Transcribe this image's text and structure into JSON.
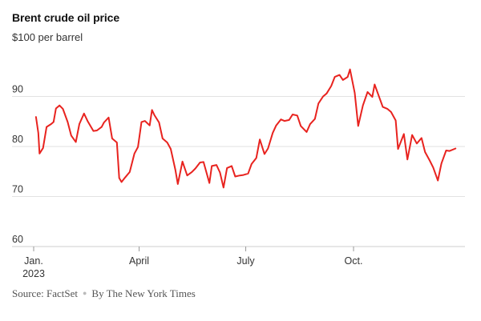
{
  "chart_data": {
    "type": "line",
    "title": "Brent crude oil price",
    "subtitle": "$100 per barrel",
    "ylim": [
      60,
      100
    ],
    "yticks": [
      60,
      70,
      80,
      90
    ],
    "xlim": [
      "2023-01-01",
      "2023-12-31"
    ],
    "xticks": [
      {
        "date": "2023-01-01",
        "label": "Jan.",
        "sublabel": "2023"
      },
      {
        "date": "2023-04-01",
        "label": "April",
        "sublabel": ""
      },
      {
        "date": "2023-07-01",
        "label": "July",
        "sublabel": ""
      },
      {
        "date": "2023-10-01",
        "label": "Oct.",
        "sublabel": ""
      }
    ],
    "grid": true,
    "legend": "none",
    "series": [
      {
        "color": "#e8231f",
        "points": [
          [
            "2023-01-03",
            85.9
          ],
          [
            "2023-01-05",
            82.7
          ],
          [
            "2023-01-06",
            78.6
          ],
          [
            "2023-01-09",
            79.7
          ],
          [
            "2023-01-12",
            83.9
          ],
          [
            "2023-01-16",
            84.5
          ],
          [
            "2023-01-18",
            84.9
          ],
          [
            "2023-01-20",
            87.6
          ],
          [
            "2023-01-23",
            88.2
          ],
          [
            "2023-01-26",
            87.5
          ],
          [
            "2023-01-30",
            84.9
          ],
          [
            "2023-02-02",
            82.2
          ],
          [
            "2023-02-06",
            80.9
          ],
          [
            "2023-02-09",
            84.5
          ],
          [
            "2023-02-13",
            86.6
          ],
          [
            "2023-02-16",
            85.1
          ],
          [
            "2023-02-21",
            83.1
          ],
          [
            "2023-02-24",
            83.2
          ],
          [
            "2023-02-28",
            83.9
          ],
          [
            "2023-03-02",
            84.8
          ],
          [
            "2023-03-06",
            85.8
          ],
          [
            "2023-03-09",
            81.6
          ],
          [
            "2023-03-13",
            80.8
          ],
          [
            "2023-03-15",
            73.7
          ],
          [
            "2023-03-17",
            72.9
          ],
          [
            "2023-03-20",
            73.8
          ],
          [
            "2023-03-24",
            74.9
          ],
          [
            "2023-03-28",
            78.6
          ],
          [
            "2023-03-31",
            79.9
          ],
          [
            "2023-04-03",
            84.9
          ],
          [
            "2023-04-06",
            85.1
          ],
          [
            "2023-04-10",
            84.2
          ],
          [
            "2023-04-12",
            87.3
          ],
          [
            "2023-04-14",
            86.3
          ],
          [
            "2023-04-18",
            84.8
          ],
          [
            "2023-04-21",
            81.6
          ],
          [
            "2023-04-25",
            80.8
          ],
          [
            "2023-04-28",
            79.5
          ],
          [
            "2023-05-02",
            75.3
          ],
          [
            "2023-05-04",
            72.5
          ],
          [
            "2023-05-08",
            77.0
          ],
          [
            "2023-05-12",
            74.2
          ],
          [
            "2023-05-16",
            74.9
          ],
          [
            "2023-05-19",
            75.6
          ],
          [
            "2023-05-23",
            76.8
          ],
          [
            "2023-05-26",
            76.9
          ],
          [
            "2023-05-31",
            72.7
          ],
          [
            "2023-06-02",
            76.1
          ],
          [
            "2023-06-06",
            76.3
          ],
          [
            "2023-06-09",
            74.8
          ],
          [
            "2023-06-12",
            71.8
          ],
          [
            "2023-06-15",
            75.7
          ],
          [
            "2023-06-19",
            76.1
          ],
          [
            "2023-06-22",
            74.0
          ],
          [
            "2023-06-26",
            74.2
          ],
          [
            "2023-06-29",
            74.3
          ],
          [
            "2023-07-03",
            74.6
          ],
          [
            "2023-07-06",
            76.5
          ],
          [
            "2023-07-10",
            77.7
          ],
          [
            "2023-07-13",
            81.4
          ],
          [
            "2023-07-17",
            78.5
          ],
          [
            "2023-07-20",
            79.6
          ],
          [
            "2023-07-24",
            82.7
          ],
          [
            "2023-07-27",
            84.2
          ],
          [
            "2023-07-31",
            85.4
          ],
          [
            "2023-08-03",
            85.1
          ],
          [
            "2023-08-07",
            85.3
          ],
          [
            "2023-08-10",
            86.4
          ],
          [
            "2023-08-14",
            86.2
          ],
          [
            "2023-08-17",
            84.1
          ],
          [
            "2023-08-22",
            82.9
          ],
          [
            "2023-08-25",
            84.5
          ],
          [
            "2023-08-29",
            85.5
          ],
          [
            "2023-09-01",
            88.6
          ],
          [
            "2023-09-05",
            90.0
          ],
          [
            "2023-09-08",
            90.6
          ],
          [
            "2023-09-12",
            92.1
          ],
          [
            "2023-09-15",
            93.9
          ],
          [
            "2023-09-19",
            94.3
          ],
          [
            "2023-09-22",
            93.3
          ],
          [
            "2023-09-26",
            93.9
          ],
          [
            "2023-09-28",
            95.4
          ],
          [
            "2023-10-02",
            90.7
          ],
          [
            "2023-10-05",
            84.1
          ],
          [
            "2023-10-09",
            88.2
          ],
          [
            "2023-10-13",
            90.9
          ],
          [
            "2023-10-17",
            89.9
          ],
          [
            "2023-10-19",
            92.4
          ],
          [
            "2023-10-23",
            89.8
          ],
          [
            "2023-10-26",
            87.9
          ],
          [
            "2023-10-30",
            87.5
          ],
          [
            "2023-11-02",
            86.9
          ],
          [
            "2023-11-06",
            85.2
          ],
          [
            "2023-11-08",
            79.5
          ],
          [
            "2023-11-13",
            82.5
          ],
          [
            "2023-11-16",
            77.4
          ],
          [
            "2023-11-20",
            82.3
          ],
          [
            "2023-11-24",
            80.6
          ],
          [
            "2023-11-28",
            81.7
          ],
          [
            "2023-12-01",
            78.9
          ],
          [
            "2023-12-05",
            77.2
          ],
          [
            "2023-12-08",
            75.8
          ],
          [
            "2023-12-12",
            73.2
          ],
          [
            "2023-12-15",
            76.6
          ],
          [
            "2023-12-19",
            79.2
          ],
          [
            "2023-12-22",
            79.1
          ],
          [
            "2023-12-27",
            79.6
          ]
        ]
      }
    ]
  },
  "footer": {
    "source": "Source: FactSet",
    "credit": "By The New York Times"
  }
}
